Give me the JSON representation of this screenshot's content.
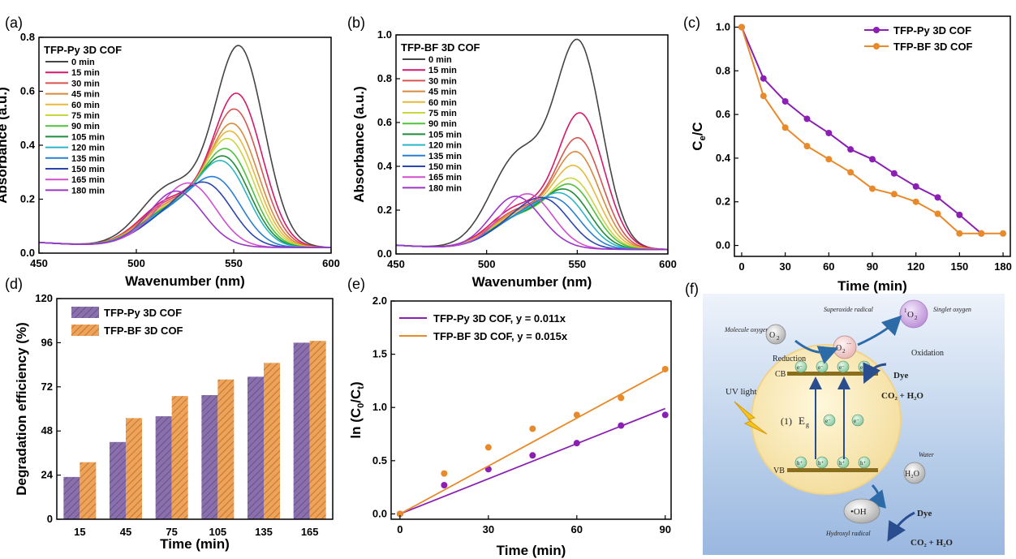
{
  "chart_data": [
    {
      "panel": "(a)",
      "type": "line",
      "legend_title": "TFP-Py 3D COF",
      "xlabel": "Wavenumber (nm)",
      "ylabel": "Absorbance (a.u.)",
      "xlim": [
        450,
        600
      ],
      "ylim": [
        0,
        0.8
      ],
      "xticks": [
        "450",
        "500",
        "550",
        "600"
      ],
      "yticks": [
        "0.0",
        "0.2",
        "0.4",
        "0.6",
        "0.8"
      ],
      "legend_position": "top-left",
      "series": [
        {
          "name": "0 min",
          "peak_x": 553,
          "peak_y": 0.73,
          "shoulder_y": 0.26,
          "color": "#444444"
        },
        {
          "name": "15 min",
          "peak_x": 552,
          "peak_y": 0.555,
          "shoulder_y": 0.2,
          "color": "#d6186a"
        },
        {
          "name": "30 min",
          "peak_x": 551,
          "peak_y": 0.495,
          "shoulder_y": 0.19,
          "color": "#d9544f"
        },
        {
          "name": "45 min",
          "peak_x": 550,
          "peak_y": 0.44,
          "shoulder_y": 0.18,
          "color": "#d98a3c"
        },
        {
          "name": "60 min",
          "peak_x": 549,
          "peak_y": 0.41,
          "shoulder_y": 0.17,
          "color": "#e8b83a"
        },
        {
          "name": "75 min",
          "peak_x": 548,
          "peak_y": 0.38,
          "shoulder_y": 0.165,
          "color": "#c9d640"
        },
        {
          "name": "90 min",
          "peak_x": 547,
          "peak_y": 0.34,
          "shoulder_y": 0.16,
          "color": "#4fc13a"
        },
        {
          "name": "105 min",
          "peak_x": 546,
          "peak_y": 0.31,
          "shoulder_y": 0.155,
          "color": "#1e8c3a"
        },
        {
          "name": "120 min",
          "peak_x": 545,
          "peak_y": 0.29,
          "shoulder_y": 0.15,
          "color": "#2bb6c8"
        },
        {
          "name": "135 min",
          "peak_x": 542,
          "peak_y": 0.22,
          "shoulder_y": 0.14,
          "color": "#2a7fd4"
        },
        {
          "name": "150 min",
          "peak_x": 538,
          "peak_y": 0.185,
          "shoulder_y": 0.13,
          "color": "#2a45b0"
        },
        {
          "name": "165 min",
          "peak_x": 530,
          "peak_y": 0.155,
          "shoulder_y": 0.12,
          "color": "#d04fd0"
        },
        {
          "name": "180 min",
          "peak_x": 522,
          "peak_y": 0.115,
          "shoulder_y": 0.11,
          "color": "#9a36c8"
        }
      ]
    },
    {
      "panel": "(b)",
      "type": "line",
      "legend_title": "TFP-BF 3D COF",
      "xlabel": "Wavenumber (nm)",
      "ylabel": "Absorbance (a.u.)",
      "xlim": [
        450,
        600
      ],
      "ylim": [
        0,
        1.0
      ],
      "xticks": [
        "450",
        "500",
        "550",
        "600"
      ],
      "yticks": [
        "0.0",
        "0.2",
        "0.4",
        "0.6",
        "0.8",
        "1.0"
      ],
      "legend_position": "top-left",
      "series": [
        {
          "name": "0 min",
          "peak_x": 551,
          "peak_y": 0.91,
          "shoulder_y": 0.5,
          "color": "#444444"
        },
        {
          "name": "15 min",
          "peak_x": 552,
          "peak_y": 0.605,
          "shoulder_y": 0.22,
          "color": "#d6186a"
        },
        {
          "name": "30 min",
          "peak_x": 551,
          "peak_y": 0.49,
          "shoulder_y": 0.2,
          "color": "#d9544f"
        },
        {
          "name": "45 min",
          "peak_x": 550,
          "peak_y": 0.425,
          "shoulder_y": 0.19,
          "color": "#d98a3c"
        },
        {
          "name": "60 min",
          "peak_x": 549,
          "peak_y": 0.36,
          "shoulder_y": 0.18,
          "color": "#e8b83a"
        },
        {
          "name": "75 min",
          "peak_x": 548,
          "peak_y": 0.3,
          "shoulder_y": 0.17,
          "color": "#c9d640"
        },
        {
          "name": "90 min",
          "peak_x": 547,
          "peak_y": 0.27,
          "shoulder_y": 0.165,
          "color": "#4fc13a"
        },
        {
          "name": "105 min",
          "peak_x": 545,
          "peak_y": 0.24,
          "shoulder_y": 0.16,
          "color": "#1e8c3a"
        },
        {
          "name": "120 min",
          "peak_x": 543,
          "peak_y": 0.215,
          "shoulder_y": 0.155,
          "color": "#2bb6c8"
        },
        {
          "name": "135 min",
          "peak_x": 540,
          "peak_y": 0.18,
          "shoulder_y": 0.15,
          "color": "#2a7fd4"
        },
        {
          "name": "150 min",
          "peak_x": 535,
          "peak_y": 0.155,
          "shoulder_y": 0.145,
          "color": "#2a45b0"
        },
        {
          "name": "165 min",
          "peak_x": 525,
          "peak_y": 0.14,
          "shoulder_y": 0.14,
          "color": "#d04fd0"
        },
        {
          "name": "180 min",
          "peak_x": 515,
          "peak_y": 0.13,
          "shoulder_y": 0.13,
          "color": "#9a36c8"
        }
      ]
    },
    {
      "panel": "(c)",
      "type": "line",
      "xlabel": "Time (min)",
      "ylabel_main": "C",
      "ylabel_sub": "e",
      "ylabel_tail": "/C",
      "xlim": [
        -5,
        185
      ],
      "ylim": [
        -0.05,
        1.05
      ],
      "xticks": [
        "0",
        "30",
        "60",
        "90",
        "120",
        "150",
        "180"
      ],
      "yticks": [
        "0.0",
        "0.2",
        "0.4",
        "0.6",
        "0.8",
        "1.0"
      ],
      "legend_position": "top-right",
      "x": [
        0,
        15,
        30,
        45,
        60,
        75,
        90,
        105,
        120,
        135,
        150,
        165,
        180
      ],
      "series": [
        {
          "name": "TFP-Py 3D COF",
          "color": "#8b1fb3",
          "values": [
            1.0,
            0.765,
            0.66,
            0.58,
            0.515,
            0.44,
            0.395,
            0.33,
            0.27,
            0.22,
            0.14,
            0.055,
            null
          ]
        },
        {
          "name": "TFP-BF 3D COF",
          "color": "#e8892a",
          "values": [
            1.0,
            0.685,
            0.54,
            0.455,
            0.395,
            0.335,
            0.26,
            0.235,
            0.2,
            0.145,
            0.055,
            0.055,
            0.055
          ]
        }
      ]
    },
    {
      "panel": "(d)",
      "type": "bar",
      "xlabel": "Time (min)",
      "ylabel": "Degradation efficiency (%)",
      "ylim": [
        0,
        120
      ],
      "yticks": [
        "0",
        "24",
        "48",
        "72",
        "96",
        "120"
      ],
      "categories": [
        "15",
        "45",
        "75",
        "105",
        "135",
        "165"
      ],
      "legend_position": "top-left",
      "series": [
        {
          "name": "TFP-Py 3D COF",
          "color": "#8a6fae",
          "values": [
            23,
            42,
            56,
            67.5,
            77.5,
            96
          ]
        },
        {
          "name": "TFP-BF 3D COF",
          "color": "#f0a256",
          "values": [
            31,
            55,
            67,
            76,
            85,
            97
          ]
        }
      ]
    },
    {
      "panel": "(e)",
      "type": "scatter",
      "xlabel": "Time (min)",
      "ylabel_prefix": "ln (C",
      "ylabel_sub1": "0",
      "ylabel_mid": "/C",
      "ylabel_sub2": "t",
      "ylabel_suffix": ")",
      "xlim": [
        -3,
        92
      ],
      "ylim": [
        -0.05,
        2.0
      ],
      "xticks": [
        "0",
        "30",
        "60",
        "90"
      ],
      "yticks": [
        "0.0",
        "0.5",
        "1.0",
        "1.5",
        "2.0"
      ],
      "legend_position": "top-left",
      "x": [
        0,
        15,
        30,
        45,
        60,
        75,
        90
      ],
      "series": [
        {
          "name": "TFP-Py 3D COF, y = 0.011x",
          "color": "#8b1fb3",
          "slope": 0.011,
          "values": [
            0.0,
            0.27,
            0.42,
            0.55,
            0.665,
            0.83,
            0.93
          ]
        },
        {
          "name": "TFP-BF 3D COF, y = 0.015x",
          "color": "#e8892a",
          "slope": 0.015,
          "values": [
            0.0,
            0.38,
            0.625,
            0.8,
            0.93,
            1.09,
            1.36
          ]
        }
      ]
    }
  ],
  "panel_f": {
    "panel": "(f)",
    "labels": {
      "uv_light": "UV light",
      "cb": "CB",
      "vb": "VB",
      "bandgap_num": "(1)",
      "bandgap_e": "E",
      "bandgap_sub": "g",
      "molecule_oxygen": "Molecule oxygen",
      "o2": "O",
      "o2_sub": "2",
      "superoxide_radical": "Superoxide radical",
      "superoxide": "O",
      "superoxide_sub": "2",
      "superoxide_sup": "·−",
      "singlet_oxygen": "Singlet oxygen",
      "singlet_sup": "1",
      "singlet_o": "O",
      "singlet_sub": "2",
      "reduction": "Reduction",
      "oxidation": "Oxidation",
      "dye_top": "Dye",
      "co2_h2o_top": "CO₂ + H₂O",
      "water": "Water",
      "h2o": "H₂O",
      "hydroxyl_radical": "Hydroxyl radical",
      "oh": "•OH",
      "dye_bottom": "Dye",
      "co2_h2o_bottom": "CO₂ + H₂O",
      "electron": "e⁻",
      "hole": "h⁺"
    }
  }
}
